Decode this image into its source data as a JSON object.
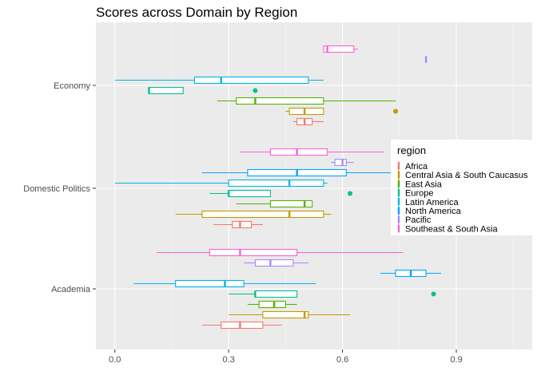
{
  "chart_data": {
    "type": "boxplot",
    "orientation": "horizontal",
    "title": "Scores across Domain by Region",
    "xlabel": "",
    "ylabel": "",
    "xlim": [
      -0.05,
      1.1
    ],
    "x_ticks": [
      0.0,
      0.3,
      0.6,
      0.9
    ],
    "x_tick_labels": [
      "0.0",
      "0.3",
      "0.6",
      "0.9"
    ],
    "grid": true,
    "legend_position": "right",
    "legend_title": "region",
    "categories": [
      "Economy",
      "Domestic Politics",
      "Academia"
    ],
    "series": [
      {
        "name": "Africa",
        "color": "#F8766D",
        "boxes": [
          {
            "category": "Economy",
            "min": 0.47,
            "q1": 0.48,
            "median": 0.5,
            "q3": 0.52,
            "max": 0.55,
            "outliers": []
          },
          {
            "category": "Domestic Politics",
            "min": 0.26,
            "q1": 0.31,
            "median": 0.33,
            "q3": 0.36,
            "max": 0.39,
            "outliers": []
          },
          {
            "category": "Academia",
            "min": 0.23,
            "q1": 0.28,
            "median": 0.33,
            "q3": 0.39,
            "max": 0.44,
            "outliers": []
          }
        ]
      },
      {
        "name": "Central Asia & South Caucasus",
        "color": "#C49A00",
        "boxes": [
          {
            "category": "Economy",
            "min": 0.45,
            "q1": 0.46,
            "median": 0.5,
            "q3": 0.55,
            "max": 0.55,
            "outliers": [
              0.74
            ]
          },
          {
            "category": "Domestic Politics",
            "min": 0.16,
            "q1": 0.23,
            "median": 0.46,
            "q3": 0.55,
            "max": 0.57,
            "outliers": []
          },
          {
            "category": "Academia",
            "min": 0.3,
            "q1": 0.39,
            "median": 0.5,
            "q3": 0.51,
            "max": 0.62,
            "outliers": []
          }
        ]
      },
      {
        "name": "East Asia",
        "color": "#53B400",
        "boxes": [
          {
            "category": "Economy",
            "min": 0.27,
            "q1": 0.32,
            "median": 0.37,
            "q3": 0.55,
            "max": 0.74,
            "outliers": []
          },
          {
            "category": "Domestic Politics",
            "min": 0.32,
            "q1": 0.41,
            "median": 0.5,
            "q3": 0.52,
            "max": 0.52,
            "outliers": []
          },
          {
            "category": "Academia",
            "min": 0.35,
            "q1": 0.38,
            "median": 0.42,
            "q3": 0.45,
            "max": 0.48,
            "outliers": []
          }
        ]
      },
      {
        "name": "Europe",
        "color": "#00C094",
        "boxes": [
          {
            "category": "Economy",
            "min": 0.09,
            "q1": 0.09,
            "median": 0.09,
            "q3": 0.18,
            "max": 0.18,
            "outliers": [
              0.37
            ]
          },
          {
            "category": "Domestic Politics",
            "min": 0.25,
            "q1": 0.3,
            "median": 0.3,
            "q3": 0.41,
            "max": 0.41,
            "outliers": [
              0.62
            ]
          },
          {
            "category": "Academia",
            "min": 0.3,
            "q1": 0.37,
            "median": 0.37,
            "q3": 0.48,
            "max": 0.48,
            "outliers": [
              0.84
            ]
          }
        ]
      },
      {
        "name": "Latin America",
        "color": "#00B6EB",
        "boxes": [
          {
            "category": "Economy",
            "min": 0.0,
            "q1": 0.21,
            "median": 0.28,
            "q3": 0.51,
            "max": 0.55,
            "outliers": []
          },
          {
            "category": "Domestic Politics",
            "min": 0.0,
            "q1": 0.3,
            "median": 0.46,
            "q3": 0.55,
            "max": 0.56,
            "outliers": []
          },
          {
            "category": "Academia",
            "min": 0.05,
            "q1": 0.16,
            "median": 0.29,
            "q3": 0.34,
            "max": 0.53,
            "outliers": []
          }
        ]
      },
      {
        "name": "North America",
        "color": "#06A4FF",
        "boxes": [
          {
            "category": "Domestic Politics",
            "min": 0.23,
            "q1": 0.35,
            "median": 0.48,
            "q3": 0.61,
            "max": 0.73,
            "outliers": []
          },
          {
            "category": "Academia",
            "min": 0.7,
            "q1": 0.74,
            "median": 0.78,
            "q3": 0.82,
            "max": 0.86,
            "outliers": []
          }
        ]
      },
      {
        "name": "Pacific",
        "color": "#A58AFF",
        "boxes": [
          {
            "category": "Economy",
            "min": 0.82,
            "q1": 0.82,
            "median": 0.82,
            "q3": 0.82,
            "max": 0.82,
            "outliers": []
          },
          {
            "category": "Domestic Politics",
            "min": 0.57,
            "q1": 0.58,
            "median": 0.6,
            "q3": 0.61,
            "max": 0.63,
            "outliers": []
          },
          {
            "category": "Academia",
            "min": 0.34,
            "q1": 0.37,
            "median": 0.41,
            "q3": 0.47,
            "max": 0.51,
            "outliers": []
          }
        ]
      },
      {
        "name": "Southeast & South Asia",
        "color": "#FB61D7",
        "boxes": [
          {
            "category": "Economy",
            "min": 0.55,
            "q1": 0.55,
            "median": 0.56,
            "q3": 0.63,
            "max": 0.64,
            "outliers": []
          },
          {
            "category": "Domestic Politics",
            "min": 0.33,
            "q1": 0.41,
            "median": 0.48,
            "q3": 0.56,
            "max": 0.71,
            "outliers": []
          },
          {
            "category": "Academia",
            "min": 0.11,
            "q1": 0.25,
            "median": 0.33,
            "q3": 0.48,
            "max": 0.76,
            "outliers": []
          }
        ]
      }
    ]
  }
}
